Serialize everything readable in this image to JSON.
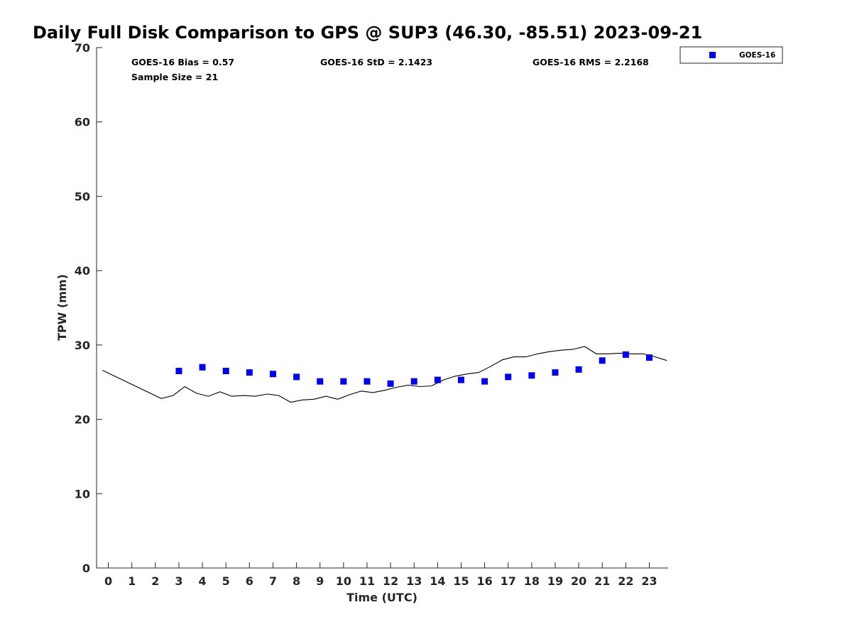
{
  "chart_data": {
    "type": "scatter",
    "title": "Daily Full Disk Comparison to GPS @ SUP3 (46.30, -85.51) 2023-09-21",
    "xlabel": "Time (UTC)",
    "ylabel": "TPW (mm)",
    "xlim": [
      -0.5,
      23.8
    ],
    "ylim": [
      0,
      70
    ],
    "x_ticks": [
      0,
      1,
      2,
      3,
      4,
      5,
      6,
      7,
      8,
      9,
      10,
      11,
      12,
      13,
      14,
      15,
      16,
      17,
      18,
      19,
      20,
      21,
      22,
      23
    ],
    "y_ticks": [
      0,
      10,
      20,
      30,
      40,
      50,
      60,
      70
    ],
    "grid": false,
    "legend_position": "top-right",
    "stats": {
      "bias": "GOES-16 Bias = 0.57",
      "std": "GOES-16 StD = 2.1423",
      "rms": "GOES-16 RMS = 2.2168",
      "sample": "Sample Size = 21"
    },
    "series": [
      {
        "name": "GOES-16",
        "kind": "markers",
        "marker": "square",
        "color": "#0000ee",
        "x": [
          3,
          4,
          5,
          6,
          7,
          8,
          9,
          10,
          11,
          12,
          13,
          14,
          15,
          16,
          17,
          18,
          19,
          20,
          21,
          22,
          23
        ],
        "y": [
          26.5,
          27.0,
          26.5,
          26.3,
          26.1,
          25.7,
          25.1,
          25.1,
          25.1,
          24.8,
          25.1,
          25.3,
          25.3,
          25.1,
          25.7,
          25.9,
          26.3,
          26.7,
          27.9,
          28.7,
          28.3
        ]
      },
      {
        "kind": "line",
        "color": "#000000",
        "x": [
          -0.25,
          2.25,
          2.75,
          3.25,
          3.75,
          4.25,
          4.75,
          5.25,
          5.75,
          6.25,
          6.75,
          7.25,
          7.75,
          8.25,
          8.75,
          9.25,
          9.75,
          10.25,
          10.75,
          11.25,
          11.75,
          12.25,
          12.75,
          13.25,
          13.75,
          14.25,
          14.75,
          15.25,
          15.75,
          16.25,
          16.75,
          17.25,
          17.75,
          18.25,
          18.75,
          19.25,
          19.75,
          20.25,
          20.75,
          21.25,
          21.75,
          22.25,
          22.75,
          23.25,
          23.75
        ],
        "y": [
          26.6,
          22.8,
          23.2,
          24.4,
          23.5,
          23.1,
          23.7,
          23.1,
          23.2,
          23.1,
          23.4,
          23.2,
          22.3,
          22.6,
          22.7,
          23.1,
          22.7,
          23.3,
          23.8,
          23.6,
          23.9,
          24.3,
          24.6,
          24.4,
          24.5,
          25.3,
          25.8,
          26.1,
          26.3,
          27.1,
          28.0,
          28.4,
          28.4,
          28.8,
          29.1,
          29.3,
          29.4,
          29.8,
          28.8,
          28.8,
          28.9,
          28.8,
          28.8,
          28.4,
          27.9
        ]
      }
    ]
  }
}
